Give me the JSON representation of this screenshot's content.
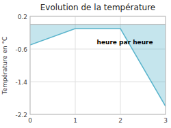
{
  "chart_data": {
    "type": "area",
    "title": "Evolution de la température",
    "ylabel": "Température en °C",
    "x": [
      0,
      1,
      2,
      3
    ],
    "values": [
      -0.5,
      -0.1,
      -0.1,
      -2.0
    ],
    "color": "#5ab4cc",
    "xlim": [
      0,
      3
    ],
    "ylim": [
      -2.2,
      0.2
    ],
    "xticks": [
      0,
      1,
      2,
      3
    ],
    "yticks": [
      0.2,
      -0.6,
      -1.4,
      -2.2
    ],
    "grid": true,
    "annotations": [
      {
        "text": "heure par heure",
        "x": 2.1,
        "y": -0.38
      }
    ]
  }
}
